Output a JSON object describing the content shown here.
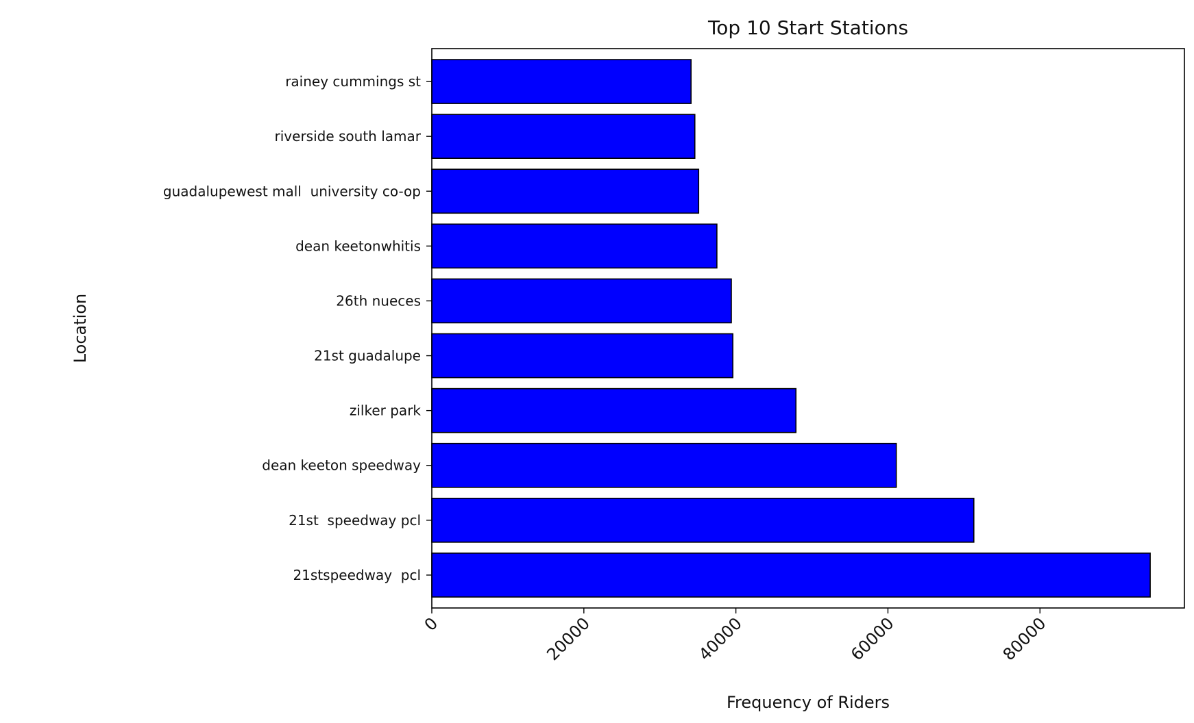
{
  "chart_data": {
    "type": "bar",
    "orientation": "horizontal",
    "title": "Top 10 Start Stations",
    "xlabel": "Frequency of Riders",
    "ylabel": "Location",
    "categories": [
      "21stspeedway  pcl",
      "21st  speedway pcl",
      "dean keeton speedway",
      "zilker park",
      "21st guadalupe",
      "26th nueces",
      "dean keetonwhitis",
      "guadalupewest mall  university co-op",
      "riverside south lamar",
      "rainey cummings st"
    ],
    "values": [
      94500,
      71300,
      61100,
      47900,
      39600,
      39400,
      37500,
      35100,
      34600,
      34100
    ],
    "xlim": [
      0,
      99000
    ],
    "xticks": [
      0,
      20000,
      40000,
      60000,
      80000
    ],
    "xtick_labels": [
      "0",
      "20000",
      "40000",
      "60000",
      "80000"
    ],
    "xtick_rotation_deg": 45,
    "bar_color": "#0000ff",
    "bar_edge_color": "#000000",
    "grid": false,
    "legend": "none"
  }
}
